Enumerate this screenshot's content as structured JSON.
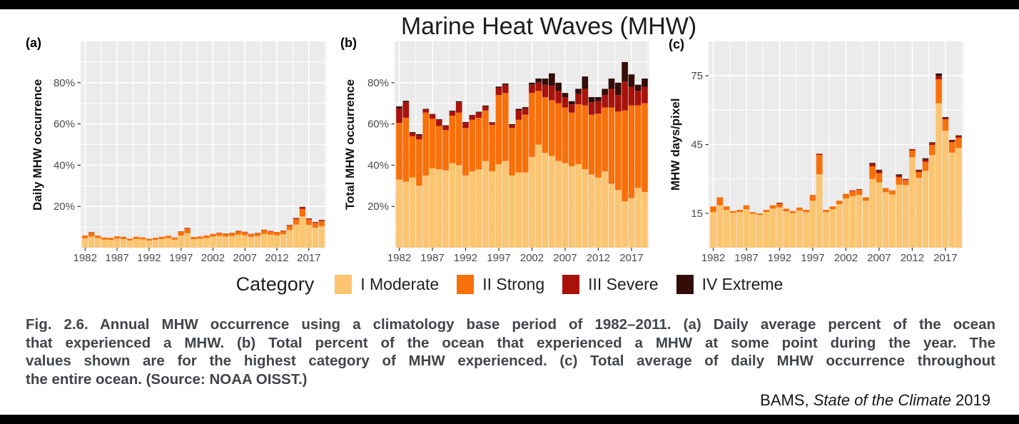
{
  "title": "Marine Heat Waves (MHW)",
  "panels": [
    {
      "label": "(a)",
      "y_title": "Daily MHW occurrence"
    },
    {
      "label": "(b)",
      "y_title": "Total MHW occurrence"
    },
    {
      "label": "(c)",
      "y_title": "MHW days/pixel"
    }
  ],
  "legend": {
    "title": "Category",
    "items": [
      {
        "label": "I Moderate",
        "color": "#FBC572"
      },
      {
        "label": "II Strong",
        "color": "#F8700A"
      },
      {
        "label": "III Severe",
        "color": "#A8120B"
      },
      {
        "label": "IV Extreme",
        "color": "#330D08"
      }
    ]
  },
  "colors": {
    "plot_bg": "#EBEBEB",
    "grid": "#FFFFFF",
    "tick_text": "#4A4A4A",
    "tick_mark": "#333333"
  },
  "chart_data": [
    {
      "type": "bar",
      "stacked": true,
      "id": "a",
      "title": "",
      "xlabel": "",
      "ylabel": "Daily MHW occurrence",
      "ylim": [
        0,
        100
      ],
      "y_major": [
        20,
        40,
        60,
        80
      ],
      "y_minor": [
        10,
        30,
        50,
        70,
        90
      ],
      "y_tick_labels": [
        "20%",
        "40%",
        "60%",
        "80%"
      ],
      "xlim": [
        1981.3,
        2019.7
      ],
      "x_ticks": [
        1982,
        1987,
        1992,
        1997,
        2002,
        2007,
        2012,
        2017
      ],
      "x": [
        1982,
        1983,
        1984,
        1985,
        1986,
        1987,
        1988,
        1989,
        1990,
        1991,
        1992,
        1993,
        1994,
        1995,
        1996,
        1997,
        1998,
        1999,
        2000,
        2001,
        2002,
        2003,
        2004,
        2005,
        2006,
        2007,
        2008,
        2009,
        2010,
        2011,
        2012,
        2013,
        2014,
        2015,
        2016,
        2017,
        2018,
        2019
      ],
      "series": [
        {
          "name": "I Moderate",
          "values": [
            4.6,
            5.4,
            4.7,
            3.9,
            3.8,
            4.4,
            4.2,
            3.5,
            4.2,
            4.0,
            3.5,
            3.8,
            4.2,
            4.6,
            3.9,
            5.9,
            7.0,
            4.1,
            4.3,
            4.7,
            5.4,
            5.7,
            5.4,
            5.7,
            6.4,
            6.0,
            5.3,
            5.6,
            6.7,
            6.3,
            6.0,
            6.5,
            8.6,
            11.2,
            15.2,
            11.0,
            9.6,
            10.4
          ]
        },
        {
          "name": "II Strong",
          "values": [
            1.3,
            1.9,
            1.2,
            1.0,
            1.0,
            1.1,
            1.1,
            0.9,
            1.1,
            1.0,
            0.9,
            1.0,
            1.1,
            1.2,
            1.0,
            1.8,
            2.3,
            1.1,
            1.1,
            1.2,
            1.3,
            1.5,
            1.4,
            1.4,
            1.6,
            1.5,
            1.3,
            1.5,
            1.8,
            1.6,
            1.5,
            1.6,
            2.1,
            2.7,
            3.6,
            2.7,
            2.4,
            2.6
          ]
        },
        {
          "name": "III Severe",
          "values": [
            0,
            0.2,
            0,
            0,
            0,
            0,
            0,
            0,
            0,
            0,
            0,
            0,
            0,
            0,
            0,
            0.2,
            0.3,
            0,
            0,
            0,
            0,
            0.1,
            0.1,
            0.1,
            0.2,
            0.2,
            0.1,
            0.1,
            0.2,
            0.2,
            0.1,
            0.2,
            0.3,
            0.5,
            0.8,
            0.5,
            0.4,
            0.5
          ]
        },
        {
          "name": "IV Extreme",
          "values": [
            0,
            0,
            0,
            0,
            0,
            0,
            0,
            0,
            0,
            0,
            0,
            0,
            0,
            0,
            0,
            0,
            0,
            0,
            0,
            0,
            0,
            0,
            0,
            0,
            0,
            0,
            0,
            0,
            0,
            0,
            0,
            0,
            0,
            0,
            0.2,
            0,
            0,
            0
          ]
        }
      ]
    },
    {
      "type": "bar",
      "stacked": true,
      "id": "b",
      "title": "",
      "xlabel": "",
      "ylabel": "Total MHW occurrence",
      "ylim": [
        0,
        100
      ],
      "y_major": [
        20,
        40,
        60,
        80
      ],
      "y_minor": [
        10,
        30,
        50,
        70,
        90
      ],
      "y_tick_labels": [
        "20%",
        "40%",
        "60%",
        "80%"
      ],
      "xlim": [
        1981.3,
        2019.7
      ],
      "x_ticks": [
        1982,
        1987,
        1992,
        1997,
        2002,
        2007,
        2012,
        2017
      ],
      "x": [
        1982,
        1983,
        1984,
        1985,
        1986,
        1987,
        1988,
        1989,
        1990,
        1991,
        1992,
        1993,
        1994,
        1995,
        1996,
        1997,
        1998,
        1999,
        2000,
        2001,
        2002,
        2003,
        2004,
        2005,
        2006,
        2007,
        2008,
        2009,
        2010,
        2011,
        2012,
        2013,
        2014,
        2015,
        2016,
        2017,
        2018,
        2019
      ],
      "series": [
        {
          "name": "I Moderate",
          "values": [
            33,
            32,
            34,
            30,
            35,
            38.5,
            38,
            37.5,
            41,
            40,
            35,
            37,
            38,
            42,
            37,
            40.5,
            42,
            35,
            36.5,
            36.5,
            44,
            50,
            46,
            44.5,
            42,
            41,
            39.5,
            40.5,
            38,
            35.5,
            34,
            37,
            31,
            28,
            22.5,
            24,
            29,
            27
          ]
        },
        {
          "name": "II Strong",
          "values": [
            27.5,
            31,
            20,
            22.5,
            30.5,
            24,
            21,
            19.5,
            23,
            25.5,
            23,
            25,
            25,
            24.5,
            22.5,
            33.5,
            33,
            23,
            25.5,
            28,
            31,
            26,
            27,
            27,
            28,
            27,
            26,
            29,
            31,
            29,
            31,
            31,
            37,
            38,
            44,
            45,
            40,
            43
          ]
        },
        {
          "name": "III Severe",
          "values": [
            7,
            7.5,
            1.5,
            2,
            1.5,
            2,
            3,
            2,
            2,
            5,
            2.5,
            2,
            2.5,
            2,
            1,
            3.5,
            4,
            1.5,
            4.5,
            3,
            4,
            4,
            6,
            7,
            6,
            5,
            4,
            5,
            8,
            6,
            6,
            6,
            9,
            8,
            14,
            9,
            7,
            8
          ]
        },
        {
          "name": "IV Extreme",
          "values": [
            1,
            0.7,
            0.5,
            0.5,
            0.3,
            0.3,
            0.3,
            0.3,
            0.4,
            0.5,
            0.4,
            0.3,
            0.4,
            0.4,
            0.3,
            0.6,
            0.6,
            0.4,
            0.8,
            0.6,
            1,
            2,
            3,
            6,
            4,
            2,
            1.5,
            2.5,
            6,
            2.5,
            2,
            3,
            5,
            6,
            9.5,
            6,
            3,
            4
          ]
        }
      ]
    },
    {
      "type": "bar",
      "stacked": true,
      "id": "c",
      "title": "",
      "xlabel": "",
      "ylabel": "MHW days/pixel",
      "ylim": [
        0,
        90
      ],
      "y_major": [
        15,
        45,
        75
      ],
      "y_minor": [
        30,
        60
      ],
      "y_tick_labels": [
        "15",
        "45",
        "75"
      ],
      "xlim": [
        1981.3,
        2019.7
      ],
      "x_ticks": [
        1982,
        1987,
        1992,
        1997,
        2002,
        2007,
        2012,
        2017
      ],
      "x": [
        1982,
        1983,
        1984,
        1985,
        1986,
        1987,
        1988,
        1989,
        1990,
        1991,
        1992,
        1993,
        1994,
        1995,
        1996,
        1997,
        1998,
        1999,
        2000,
        2001,
        2002,
        2003,
        2004,
        2005,
        2006,
        2007,
        2008,
        2009,
        2010,
        2011,
        2012,
        2013,
        2014,
        2015,
        2016,
        2017,
        2018,
        2019
      ],
      "series": [
        {
          "name": "I Moderate",
          "values": [
            15.5,
            18.5,
            16.5,
            15.2,
            15.6,
            16.8,
            14.8,
            14.3,
            15.6,
            17.1,
            17.6,
            15.9,
            15.1,
            16.2,
            15.5,
            20.5,
            32,
            15.5,
            16.8,
            19,
            21.5,
            22.5,
            23,
            20.5,
            30,
            28.5,
            24.2,
            23.2,
            27.5,
            27.3,
            39.5,
            30.5,
            33.5,
            40.5,
            63,
            51,
            41.5,
            43.5
          ]
        },
        {
          "name": "II Strong",
          "values": [
            2.5,
            3.5,
            1.5,
            0.8,
            0.9,
            1.7,
            0.7,
            0.7,
            0.9,
            1.4,
            1.6,
            1.1,
            0.9,
            1.3,
            1.0,
            2.5,
            8.5,
            1.0,
            1.2,
            1.5,
            2.0,
            2.2,
            2.2,
            1.5,
            5.5,
            4.0,
            1.8,
            1.8,
            3.2,
            2.2,
            3.0,
            2.5,
            4.0,
            4.3,
            10.5,
            5.0,
            4.5,
            4.5
          ]
        },
        {
          "name": "III Severe",
          "values": [
            0,
            0,
            0,
            0,
            0,
            0,
            0,
            0,
            0,
            0,
            0.4,
            0,
            0,
            0,
            0,
            0,
            0.5,
            0,
            0,
            0,
            0,
            0.3,
            0.3,
            0,
            1.2,
            1.2,
            0,
            0,
            0.8,
            0.5,
            0.5,
            0.7,
            1.0,
            0.9,
            1.5,
            0.8,
            0.7,
            0.7
          ]
        },
        {
          "name": "IV Extreme",
          "values": [
            0,
            0,
            0,
            0,
            0,
            0,
            0,
            0,
            0,
            0,
            0,
            0,
            0,
            0,
            0,
            0,
            0,
            0,
            0,
            0,
            0,
            0,
            0,
            0,
            0.3,
            0.3,
            0,
            0,
            0.5,
            0,
            0,
            0.3,
            0.5,
            0.3,
            1.0,
            0.2,
            0.3,
            0.3
          ]
        }
      ]
    }
  ],
  "caption": {
    "lines": [
      "Fig. 2.6. Annual MHW occurrence using a climatology base period of 1982–2011. (a) Daily average percent of the ocean",
      "that experienced a MHW. (b) Total percent of the ocean that experienced a MHW at some point during the year. The",
      "values shown are for the highest category of MHW experienced. (c) Total average of daily MHW occurrence throughout",
      "the entire ocean. (Source: NOAA OISST.)"
    ]
  },
  "attribution": {
    "prefix": "BAMS, ",
    "italic": "State of the Climate",
    "suffix": " 2019"
  }
}
